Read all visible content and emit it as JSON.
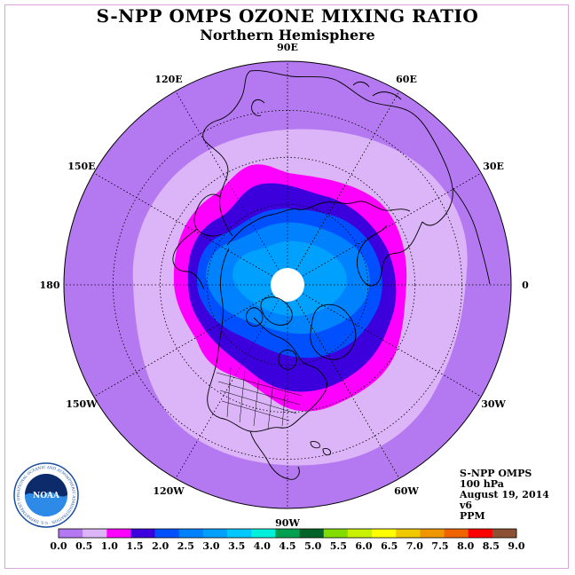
{
  "header": {
    "title": "S-NPP OMPS OZONE MIXING RATIO",
    "subtitle": "Northern Hemisphere"
  },
  "map": {
    "projection": "north-polar-stereographic",
    "outer_latitude": "equator",
    "longitude_labels": [
      "90E",
      "60E",
      "30E",
      "0",
      "30W",
      "60W",
      "90W",
      "120W",
      "150W",
      "180",
      "150E",
      "120E"
    ],
    "background_color": "#b478f0",
    "polar_gap_color": "#ffffff"
  },
  "info": {
    "instrument": "S-NPP OMPS",
    "level": "100 hPa",
    "date": "August 19, 2014",
    "version": "v6",
    "units": "PPM"
  },
  "colorbar": {
    "ticks": [
      "0.0",
      "0.5",
      "1.0",
      "1.5",
      "2.0",
      "2.5",
      "3.0",
      "3.5",
      "4.0",
      "4.5",
      "5.0",
      "5.5",
      "6.0",
      "6.5",
      "7.0",
      "7.5",
      "8.0",
      "8.5",
      "9.0"
    ],
    "colors": [
      "#b478f0",
      "#dcb4f8",
      "#ff00ff",
      "#3c00dc",
      "#0050ff",
      "#0082ff",
      "#00a0ff",
      "#00c8ff",
      "#00f0dc",
      "#00a050",
      "#006428",
      "#82dc00",
      "#c8f000",
      "#ffff00",
      "#f0c800",
      "#f09600",
      "#f06400",
      "#ff0000",
      "#8c5032"
    ]
  },
  "logo": {
    "text": "NOAA",
    "ring_text": "NATIONAL OCEANIC AND ATMOSPHERIC ADMINISTRATION · U.S. DEPARTMENT OF COMMERCE"
  }
}
